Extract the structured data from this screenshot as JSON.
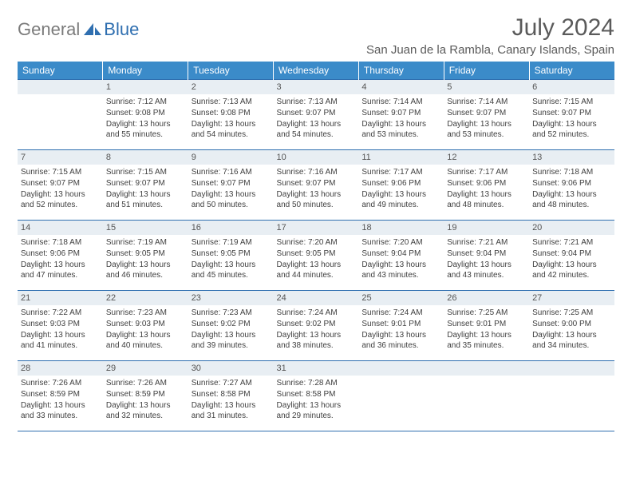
{
  "brand": {
    "text_gray": "General",
    "text_blue": "Blue"
  },
  "title": "July 2024",
  "location": "San Juan de la Rambla, Canary Islands, Spain",
  "header_bg": "#3b8bc9",
  "rule_color": "#2f6fb0",
  "daybar_bg": "#e8eef3",
  "weekdays": [
    "Sunday",
    "Monday",
    "Tuesday",
    "Wednesday",
    "Thursday",
    "Friday",
    "Saturday"
  ],
  "weeks": [
    [
      null,
      {
        "n": "1",
        "sr": "7:12 AM",
        "ss": "9:08 PM",
        "dl": "13 hours and 55 minutes."
      },
      {
        "n": "2",
        "sr": "7:13 AM",
        "ss": "9:08 PM",
        "dl": "13 hours and 54 minutes."
      },
      {
        "n": "3",
        "sr": "7:13 AM",
        "ss": "9:07 PM",
        "dl": "13 hours and 54 minutes."
      },
      {
        "n": "4",
        "sr": "7:14 AM",
        "ss": "9:07 PM",
        "dl": "13 hours and 53 minutes."
      },
      {
        "n": "5",
        "sr": "7:14 AM",
        "ss": "9:07 PM",
        "dl": "13 hours and 53 minutes."
      },
      {
        "n": "6",
        "sr": "7:15 AM",
        "ss": "9:07 PM",
        "dl": "13 hours and 52 minutes."
      }
    ],
    [
      {
        "n": "7",
        "sr": "7:15 AM",
        "ss": "9:07 PM",
        "dl": "13 hours and 52 minutes."
      },
      {
        "n": "8",
        "sr": "7:15 AM",
        "ss": "9:07 PM",
        "dl": "13 hours and 51 minutes."
      },
      {
        "n": "9",
        "sr": "7:16 AM",
        "ss": "9:07 PM",
        "dl": "13 hours and 50 minutes."
      },
      {
        "n": "10",
        "sr": "7:16 AM",
        "ss": "9:07 PM",
        "dl": "13 hours and 50 minutes."
      },
      {
        "n": "11",
        "sr": "7:17 AM",
        "ss": "9:06 PM",
        "dl": "13 hours and 49 minutes."
      },
      {
        "n": "12",
        "sr": "7:17 AM",
        "ss": "9:06 PM",
        "dl": "13 hours and 48 minutes."
      },
      {
        "n": "13",
        "sr": "7:18 AM",
        "ss": "9:06 PM",
        "dl": "13 hours and 48 minutes."
      }
    ],
    [
      {
        "n": "14",
        "sr": "7:18 AM",
        "ss": "9:06 PM",
        "dl": "13 hours and 47 minutes."
      },
      {
        "n": "15",
        "sr": "7:19 AM",
        "ss": "9:05 PM",
        "dl": "13 hours and 46 minutes."
      },
      {
        "n": "16",
        "sr": "7:19 AM",
        "ss": "9:05 PM",
        "dl": "13 hours and 45 minutes."
      },
      {
        "n": "17",
        "sr": "7:20 AM",
        "ss": "9:05 PM",
        "dl": "13 hours and 44 minutes."
      },
      {
        "n": "18",
        "sr": "7:20 AM",
        "ss": "9:04 PM",
        "dl": "13 hours and 43 minutes."
      },
      {
        "n": "19",
        "sr": "7:21 AM",
        "ss": "9:04 PM",
        "dl": "13 hours and 43 minutes."
      },
      {
        "n": "20",
        "sr": "7:21 AM",
        "ss": "9:04 PM",
        "dl": "13 hours and 42 minutes."
      }
    ],
    [
      {
        "n": "21",
        "sr": "7:22 AM",
        "ss": "9:03 PM",
        "dl": "13 hours and 41 minutes."
      },
      {
        "n": "22",
        "sr": "7:23 AM",
        "ss": "9:03 PM",
        "dl": "13 hours and 40 minutes."
      },
      {
        "n": "23",
        "sr": "7:23 AM",
        "ss": "9:02 PM",
        "dl": "13 hours and 39 minutes."
      },
      {
        "n": "24",
        "sr": "7:24 AM",
        "ss": "9:02 PM",
        "dl": "13 hours and 38 minutes."
      },
      {
        "n": "25",
        "sr": "7:24 AM",
        "ss": "9:01 PM",
        "dl": "13 hours and 36 minutes."
      },
      {
        "n": "26",
        "sr": "7:25 AM",
        "ss": "9:01 PM",
        "dl": "13 hours and 35 minutes."
      },
      {
        "n": "27",
        "sr": "7:25 AM",
        "ss": "9:00 PM",
        "dl": "13 hours and 34 minutes."
      }
    ],
    [
      {
        "n": "28",
        "sr": "7:26 AM",
        "ss": "8:59 PM",
        "dl": "13 hours and 33 minutes."
      },
      {
        "n": "29",
        "sr": "7:26 AM",
        "ss": "8:59 PM",
        "dl": "13 hours and 32 minutes."
      },
      {
        "n": "30",
        "sr": "7:27 AM",
        "ss": "8:58 PM",
        "dl": "13 hours and 31 minutes."
      },
      {
        "n": "31",
        "sr": "7:28 AM",
        "ss": "8:58 PM",
        "dl": "13 hours and 29 minutes."
      },
      null,
      null,
      null
    ]
  ],
  "labels": {
    "sunrise": "Sunrise:",
    "sunset": "Sunset:",
    "daylight": "Daylight:"
  }
}
